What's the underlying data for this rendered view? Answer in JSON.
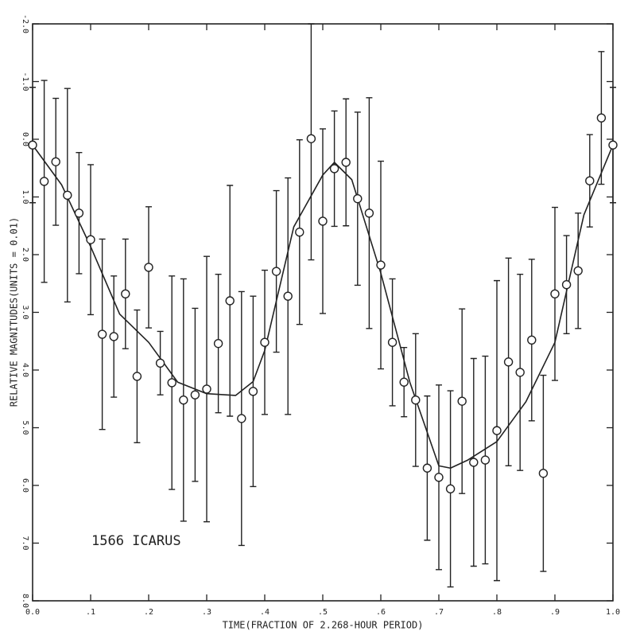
{
  "chart_data": {
    "type": "scatter",
    "x_label": "TIME(FRACTION OF 2.268-HOUR PERIOD)",
    "y_label": "RELATIVE MAGNITUDES(UNITS = 0.01)",
    "annotation": "1566 ICARUS",
    "xlim": [
      0,
      1
    ],
    "ylim": [
      -2,
      8
    ],
    "y_inverted": true,
    "xticks": [
      {
        "value": 0,
        "label": "0.0"
      },
      {
        "value": 0.1,
        "label": ".1"
      },
      {
        "value": 0.2,
        "label": ".2"
      },
      {
        "value": 0.3,
        "label": ".3"
      },
      {
        "value": 0.4,
        "label": ".4"
      },
      {
        "value": 0.5,
        "label": ".5"
      },
      {
        "value": 0.6,
        "label": ".6"
      },
      {
        "value": 0.7,
        "label": ".7"
      },
      {
        "value": 0.8,
        "label": ".8"
      },
      {
        "value": 0.9,
        "label": ".9"
      },
      {
        "value": 1,
        "label": "1.0"
      }
    ],
    "yticks": [
      {
        "value": -2,
        "label": "-2.0"
      },
      {
        "value": -1,
        "label": "-1.0"
      },
      {
        "value": 0,
        "label": "0.0"
      },
      {
        "value": 1,
        "label": "1.0"
      },
      {
        "value": 2,
        "label": "2.0"
      },
      {
        "value": 3,
        "label": "3.0"
      },
      {
        "value": 4,
        "label": "4.0"
      },
      {
        "value": 5,
        "label": "5.0"
      },
      {
        "value": 6,
        "label": "6.0"
      },
      {
        "value": 7,
        "label": "7.0"
      },
      {
        "value": 8,
        "label": "8.0"
      }
    ],
    "points": {
      "color": "#222",
      "x": [
        0,
        0.02,
        0.04,
        0.06,
        0.08,
        0.1,
        0.12,
        0.14,
        0.16,
        0.18,
        0.2,
        0.22,
        0.24,
        0.26,
        0.28,
        0.3,
        0.32,
        0.34,
        0.36,
        0.38,
        0.4,
        0.42,
        0.44,
        0.46,
        0.48,
        0.5,
        0.52,
        0.54,
        0.56,
        0.58,
        0.6,
        0.62,
        0.64,
        0.66,
        0.68,
        0.7,
        0.72,
        0.74,
        0.76,
        0.78,
        0.8,
        0.82,
        0.84,
        0.86,
        0.88,
        0.9,
        0.92,
        0.94,
        0.96,
        0.98,
        1
      ],
      "values": [
        0.1,
        0.73,
        0.39,
        0.97,
        1.28,
        1.74,
        3.38,
        3.42,
        2.68,
        4.11,
        2.22,
        3.88,
        4.22,
        4.52,
        4.43,
        4.33,
        3.54,
        2.8,
        4.84,
        4.37,
        3.52,
        2.29,
        2.72,
        1.61,
        -0.01,
        1.42,
        0.51,
        0.4,
        1.03,
        1.28,
        2.18,
        3.52,
        4.21,
        4.52,
        5.7,
        5.86,
        6.06,
        4.54,
        5.6,
        5.56,
        5.05,
        3.86,
        4.04,
        3.48,
        5.79,
        2.68,
        2.52,
        2.28,
        0.72,
        -0.37,
        0.1
      ],
      "errors": [
        1.0,
        1.75,
        1.1,
        1.85,
        1.05,
        1.3,
        1.65,
        1.05,
        0.95,
        1.15,
        1.05,
        0.55,
        1.85,
        2.1,
        1.5,
        2.3,
        1.2,
        2.0,
        2.2,
        1.65,
        1.25,
        1.4,
        2.05,
        1.6,
        2.1,
        1.6,
        1.0,
        1.1,
        1.5,
        2.0,
        1.8,
        1.1,
        0.6,
        1.15,
        1.25,
        1.6,
        1.7,
        1.6,
        1.8,
        1.8,
        2.6,
        1.8,
        1.7,
        1.4,
        1.7,
        1.5,
        0.85,
        1.0,
        0.8,
        1.15,
        1.0
      ]
    },
    "fit": {
      "color": "#222",
      "x": [
        0,
        0.05,
        0.1,
        0.15,
        0.2,
        0.25,
        0.3,
        0.35,
        0.38,
        0.4,
        0.45,
        0.5,
        0.52,
        0.55,
        0.6,
        0.65,
        0.7,
        0.72,
        0.75,
        0.8,
        0.85,
        0.9,
        0.95,
        1
      ],
      "values": [
        0.1,
        0.79,
        1.86,
        3.03,
        3.52,
        4.21,
        4.41,
        4.44,
        4.2,
        3.66,
        1.52,
        0.62,
        0.4,
        0.7,
        2.32,
        4.21,
        5.66,
        5.7,
        5.56,
        5.24,
        4.55,
        3.52,
        1.31,
        0.1
      ]
    }
  }
}
